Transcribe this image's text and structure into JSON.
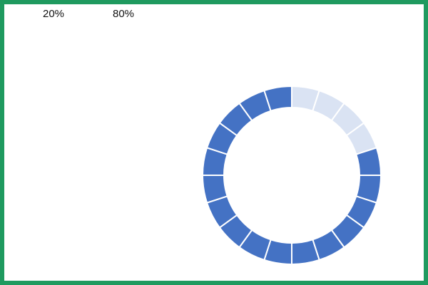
{
  "chart_data": {
    "type": "pie",
    "subtype": "segmented-donut",
    "segments_total": 20,
    "categories": [
      "20%",
      "80%"
    ],
    "values": [
      20,
      80
    ],
    "labels": [
      "20%",
      "80%"
    ],
    "colors": {
      "filled": "#4472c4",
      "empty": "#dae3f3",
      "border": "#1f9a5f"
    },
    "start": "top",
    "direction": "clockwise",
    "empty_first": true
  }
}
